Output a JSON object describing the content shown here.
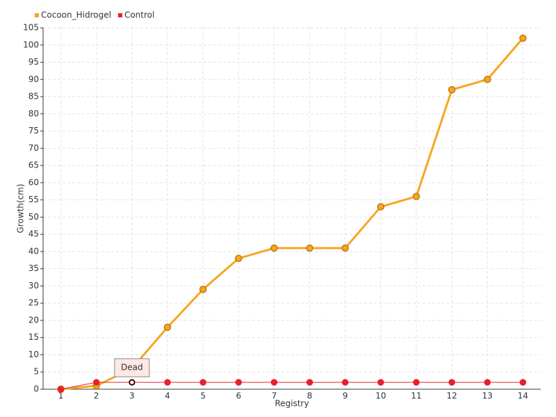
{
  "chart_data": {
    "type": "line",
    "x_label": "Registry",
    "y_label": "Growth(cm)",
    "categories": [
      "1",
      "2",
      "3",
      "4",
      "5",
      "6",
      "7",
      "8",
      "9",
      "10",
      "11",
      "12",
      "13",
      "14"
    ],
    "series": [
      {
        "name": "Cocoon_Hidrogel",
        "color": "#f5a623",
        "values": [
          0,
          1,
          6,
          18,
          29,
          38,
          41,
          41,
          41,
          53,
          56,
          87,
          90,
          102
        ]
      },
      {
        "name": "Control",
        "color": "#e8202a",
        "values": [
          0,
          2,
          2,
          2,
          2,
          2,
          2,
          2,
          2,
          2,
          2,
          2,
          2,
          2
        ]
      }
    ],
    "ylim": [
      0,
      105
    ],
    "yticks": [
      0,
      5,
      10,
      15,
      20,
      25,
      30,
      35,
      40,
      45,
      50,
      55,
      60,
      65,
      70,
      75,
      80,
      85,
      90,
      95,
      100,
      105
    ],
    "grid": true,
    "legend": "top-left",
    "annotations": [
      {
        "text": "Dead",
        "x": "3",
        "y": 2
      }
    ]
  }
}
